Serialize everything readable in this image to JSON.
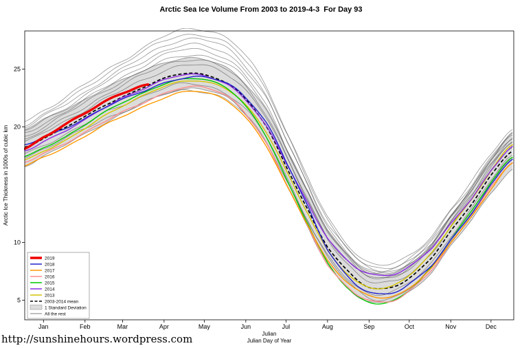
{
  "chart_data": {
    "type": "line",
    "title": "Arctic Sea Ice Volume From 2003 to 2019-4-3  For Day 93",
    "ylabel": "Arctic Ice Thickness in 1000s of cubic km",
    "xlabel_line1": "Julian",
    "xlabel_line2": "Julian Day of Year",
    "xlim_days": [
      1,
      366
    ],
    "ylim": [
      3.3,
      28.3
    ],
    "yticks": [
      25,
      20,
      10,
      5
    ],
    "month_labels": [
      "Jan",
      "Feb",
      "Mar",
      "Apr",
      "May",
      "Jun",
      "Jul",
      "Aug",
      "Sep",
      "Oct",
      "Nov",
      "Dec"
    ],
    "month_label_days": [
      15,
      46,
      74,
      105,
      135,
      166,
      196,
      227,
      258,
      288,
      319,
      349
    ],
    "control_days": [
      1,
      15,
      32,
      46,
      60,
      74,
      91,
      105,
      120,
      135,
      152,
      166,
      182,
      196,
      213,
      227,
      244,
      258,
      274,
      288,
      305,
      319,
      335,
      349,
      365
    ],
    "mean_series": {
      "name": "2003-2014 mean",
      "color": "#000000",
      "style": "dashed",
      "values": [
        18.2,
        19.0,
        20.0,
        20.9,
        21.8,
        22.6,
        23.5,
        24.2,
        24.6,
        24.5,
        23.8,
        22.4,
        19.9,
        16.6,
        12.7,
        9.6,
        7.3,
        6.1,
        6.1,
        6.9,
        8.7,
        11.0,
        13.4,
        15.8,
        17.9
      ]
    },
    "std_dev": {
      "label": "1 Standard Deviation",
      "fill": "#DCDCDC",
      "edge": "#8A8A8A",
      "values": [
        1.6,
        1.6,
        1.55,
        1.5,
        1.5,
        1.45,
        1.4,
        1.35,
        1.3,
        1.3,
        1.3,
        1.35,
        1.45,
        1.55,
        1.55,
        1.5,
        1.4,
        1.3,
        1.2,
        1.2,
        1.25,
        1.3,
        1.4,
        1.5,
        1.55
      ]
    },
    "series": [
      {
        "name": "2019",
        "color": "#EE0000",
        "width": 3.4,
        "end_day": 93,
        "days": [
          1,
          15,
          32,
          46,
          60,
          74,
          91,
          93
        ],
        "values": [
          18.1,
          19.1,
          20.3,
          21.2,
          22.1,
          22.9,
          23.6,
          23.65
        ]
      },
      {
        "name": "2018",
        "color": "#2222CC",
        "width": 1.4,
        "days": [
          1,
          15,
          32,
          46,
          60,
          74,
          91,
          105,
          120,
          135,
          152,
          166,
          182,
          196,
          213,
          227,
          244,
          258,
          274,
          288,
          305,
          319,
          335,
          349,
          365
        ],
        "values": [
          18.4,
          19.1,
          19.9,
          20.7,
          21.6,
          22.4,
          23.2,
          23.8,
          24.2,
          24.3,
          23.8,
          22.5,
          20.2,
          17.0,
          13.0,
          9.4,
          6.8,
          5.7,
          5.6,
          6.4,
          8.0,
          10.2,
          12.6,
          15.0,
          17.2
        ]
      },
      {
        "name": "2017",
        "color": "#FF9900",
        "width": 1.4,
        "days": [
          1,
          15,
          32,
          46,
          60,
          74,
          91,
          105,
          120,
          135,
          152,
          166,
          182,
          196,
          213,
          227,
          244,
          258,
          274,
          288,
          305,
          319,
          335,
          349,
          365
        ],
        "values": [
          16.6,
          17.4,
          18.3,
          19.2,
          20.1,
          20.9,
          21.8,
          22.5,
          23.0,
          23.0,
          22.3,
          20.8,
          18.2,
          15.0,
          11.4,
          8.4,
          6.3,
          5.4,
          5.3,
          6.1,
          7.8,
          10.0,
          12.3,
          14.6,
          16.8
        ]
      },
      {
        "name": "2016",
        "color": "#FF8C8C",
        "width": 1.4,
        "days": [
          1,
          15,
          32,
          46,
          60,
          74,
          91,
          105,
          120,
          135,
          152,
          166,
          182,
          196,
          213,
          227,
          244,
          258,
          274,
          288,
          305,
          319,
          335,
          349,
          365
        ],
        "values": [
          16.9,
          17.7,
          18.6,
          19.5,
          20.4,
          21.3,
          22.2,
          22.9,
          23.4,
          23.4,
          22.7,
          21.1,
          18.4,
          15.1,
          11.3,
          8.1,
          5.9,
          5.0,
          4.9,
          5.8,
          7.6,
          9.9,
          12.4,
          14.8,
          16.9
        ]
      },
      {
        "name": "2015",
        "color": "#00C800",
        "width": 1.4,
        "days": [
          1,
          15,
          32,
          46,
          60,
          74,
          91,
          105,
          120,
          135,
          152,
          166,
          182,
          196,
          213,
          227,
          244,
          258,
          274,
          288,
          305,
          319,
          335,
          349,
          365
        ],
        "values": [
          17.4,
          18.2,
          19.2,
          20.2,
          21.2,
          22.1,
          23.0,
          23.7,
          24.1,
          24.1,
          23.4,
          21.8,
          19.0,
          15.5,
          11.5,
          8.2,
          5.8,
          4.8,
          4.9,
          5.9,
          7.9,
          10.3,
          12.8,
          15.2,
          17.3
        ]
      },
      {
        "name": "2014",
        "color": "#8A2BE2",
        "width": 1.4,
        "days": [
          1,
          15,
          32,
          46,
          60,
          74,
          91,
          105,
          120,
          135,
          152,
          166,
          182,
          196,
          213,
          227,
          244,
          258,
          274,
          288,
          305,
          319,
          335,
          349,
          365
        ],
        "values": [
          17.9,
          18.7,
          19.7,
          20.6,
          21.6,
          22.5,
          23.4,
          24.1,
          24.5,
          24.4,
          23.7,
          22.3,
          19.9,
          16.9,
          13.3,
          10.4,
          8.2,
          7.3,
          7.2,
          7.9,
          9.5,
          11.6,
          13.9,
          16.2,
          18.3
        ]
      },
      {
        "name": "2013",
        "color": "#D4C400",
        "width": 1.4,
        "days": [
          1,
          15,
          32,
          46,
          60,
          74,
          91,
          105,
          120,
          135,
          152,
          166,
          182,
          196,
          213,
          227,
          244,
          258,
          274,
          288,
          305,
          319,
          335,
          349,
          365
        ],
        "values": [
          17.1,
          17.9,
          18.9,
          19.9,
          20.9,
          21.8,
          22.8,
          23.5,
          23.9,
          23.9,
          23.3,
          21.9,
          19.4,
          16.2,
          12.4,
          9.3,
          7.0,
          6.1,
          6.2,
          7.2,
          9.1,
          11.4,
          13.8,
          16.2,
          18.4
        ]
      }
    ],
    "rest_lines": {
      "label": "All the rest",
      "color": "#3C3C3C",
      "width": 0.8,
      "opacity": 0.55,
      "offsets_a": [
        2.6,
        2.3,
        2.0,
        1.7,
        1.4,
        1.1,
        0.8,
        0.5,
        -0.6,
        -1.0
      ],
      "offsets_b": [
        1.7,
        2.3,
        1.4,
        2.0,
        1.0,
        1.5,
        0.5,
        1.0,
        -1.0,
        -0.5
      ]
    },
    "legend": [
      {
        "label": "2019",
        "type": "thick-line",
        "color": "#EE0000"
      },
      {
        "label": "2018",
        "type": "line",
        "color": "#2222CC"
      },
      {
        "label": "2017",
        "type": "line",
        "color": "#FF9900"
      },
      {
        "label": "2016",
        "type": "line",
        "color": "#FF8C8C"
      },
      {
        "label": "2015",
        "type": "line",
        "color": "#00C800"
      },
      {
        "label": "2014",
        "type": "line",
        "color": "#8A2BE2"
      },
      {
        "label": "2013",
        "type": "line",
        "color": "#D4C400"
      },
      {
        "label": "2003-2014 mean",
        "type": "dashed-line",
        "color": "#000000"
      },
      {
        "label": "1 Standard Deviation",
        "type": "band",
        "color": "#DCDCDC"
      },
      {
        "label": "All the rest",
        "type": "thin-line",
        "color": "#555555"
      }
    ]
  },
  "footer": {
    "url_text": "http://sunshinehours.wordpress.com"
  }
}
